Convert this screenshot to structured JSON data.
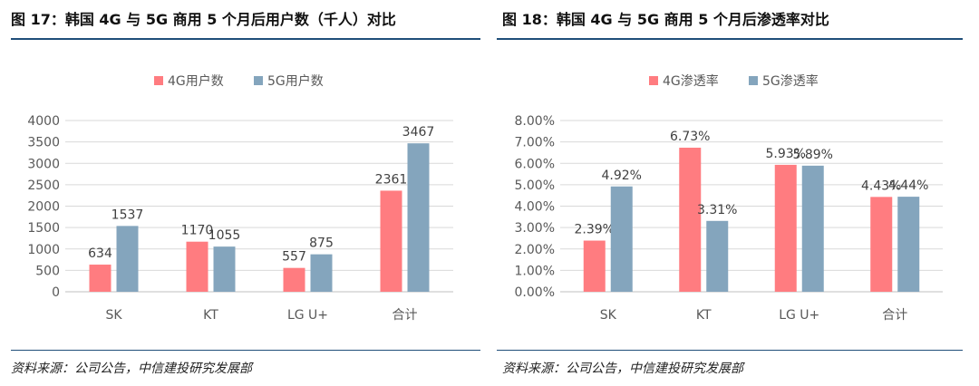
{
  "colors": {
    "series_4g": "#ff7c80",
    "series_5g": "#84a5bd",
    "rule": "#1f4e79",
    "grid": "#d9d9d9",
    "text": "#595959"
  },
  "left": {
    "title": "图 17：韩国 4G 与 5G 商用 5 个月后用户数（千人）对比",
    "source": "资料来源：公司公告，中信建投研究发展部"
  },
  "right": {
    "title": "图 18：韩国 4G 与 5G 商用 5 个月后渗透率对比",
    "source": "资料来源：公司公告，中信建投研究发展部"
  },
  "chart_data": [
    {
      "type": "bar",
      "title": "",
      "categories": [
        "SK",
        "KT",
        "LG U+",
        "合计"
      ],
      "series": [
        {
          "name": "4G用户数",
          "values": [
            634,
            1170,
            557,
            2361
          ],
          "labels": [
            "634",
            "1170",
            "557",
            "2361"
          ]
        },
        {
          "name": "5G用户数",
          "values": [
            1537,
            1055,
            875,
            3467
          ],
          "labels": [
            "1537",
            "1055",
            "875",
            "3467"
          ]
        }
      ],
      "ylim": [
        0,
        4000
      ],
      "yticks": [
        0,
        500,
        1000,
        1500,
        2000,
        2500,
        3000,
        3500,
        4000
      ],
      "ytick_labels": [
        "0",
        "500",
        "1000",
        "1500",
        "2000",
        "2500",
        "3000",
        "3500",
        "4000"
      ],
      "grid": true,
      "legend": "top-center"
    },
    {
      "type": "bar",
      "title": "",
      "categories": [
        "SK",
        "KT",
        "LG U+",
        "合计"
      ],
      "series": [
        {
          "name": "4G渗透率",
          "values": [
            2.39,
            6.73,
            5.93,
            4.43
          ],
          "labels": [
            "2.39%",
            "6.73%",
            "5.93%",
            "4.43%"
          ]
        },
        {
          "name": "5G渗透率",
          "values": [
            4.92,
            3.31,
            5.89,
            4.44
          ],
          "labels": [
            "4.92%",
            "3.31%",
            "5.89%",
            "4.44%"
          ]
        }
      ],
      "ylim": [
        0,
        8
      ],
      "yticks": [
        0,
        1,
        2,
        3,
        4,
        5,
        6,
        7,
        8
      ],
      "ytick_labels": [
        "0.00%",
        "1.00%",
        "2.00%",
        "3.00%",
        "4.00%",
        "5.00%",
        "6.00%",
        "7.00%",
        "8.00%"
      ],
      "grid": true,
      "legend": "top-center"
    }
  ]
}
